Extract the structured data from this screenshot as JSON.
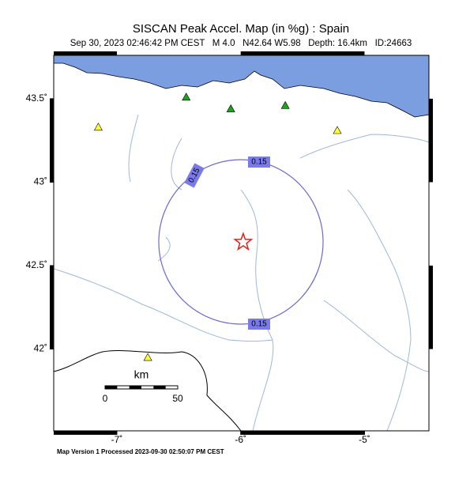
{
  "header": {
    "title": "SISCAN Peak Accel. Map (in %g) : Spain",
    "subtitle": "Sep 30, 2023 02:46:42 PM CEST   M 4.0   N42.64 W5.98   Depth: 16.4km   ID:24663"
  },
  "map": {
    "xlim": [
      -7.51,
      -4.48
    ],
    "ylim": [
      41.51,
      43.76
    ],
    "xticks": [
      {
        "value": -7,
        "label": "-7˚"
      },
      {
        "value": -6,
        "label": "-6˚"
      },
      {
        "value": -5,
        "label": "-5˚"
      }
    ],
    "yticks": [
      {
        "value": 42,
        "label": "42˚"
      },
      {
        "value": 42.5,
        "label": "42.5˚"
      },
      {
        "value": 43,
        "label": "43˚"
      },
      {
        "value": 43.5,
        "label": "43.5˚"
      }
    ],
    "epicenter": {
      "lon": -5.98,
      "lat": 42.64,
      "color": "#e02020"
    },
    "stations": [
      {
        "lon": -6.44,
        "lat": 43.51,
        "color": "#22a022"
      },
      {
        "lon": -6.08,
        "lat": 43.44,
        "color": "#22a022"
      },
      {
        "lon": -5.64,
        "lat": 43.46,
        "color": "#22a022"
      },
      {
        "lon": -7.15,
        "lat": 43.33,
        "color": "#ffff33"
      },
      {
        "lon": -5.22,
        "lat": 43.31,
        "color": "#ffff33"
      },
      {
        "lon": -6.75,
        "lat": 41.95,
        "color": "#ffff33"
      }
    ],
    "contour_labels": [
      0.15,
      0.15,
      0.15
    ],
    "scale_bar": {
      "unit": "km",
      "labels": [
        0,
        50
      ]
    }
  },
  "footer": "Map Version 1 Processed 2023-09-30 02:50:07 PM CEST"
}
